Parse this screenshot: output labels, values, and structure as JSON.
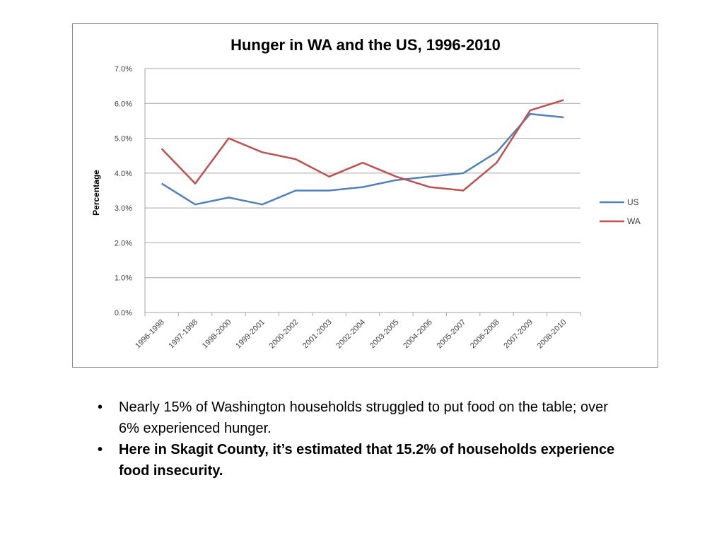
{
  "chart_data": {
    "type": "line",
    "title": "Hunger in WA and the US, 1996-2010",
    "xlabel": "",
    "ylabel": "Percentage",
    "ylim": [
      0,
      0.07
    ],
    "yticks": [
      "0.0%",
      "1.0%",
      "2.0%",
      "3.0%",
      "4.0%",
      "5.0%",
      "6.0%",
      "7.0%"
    ],
    "grid": true,
    "legend": "right",
    "categories": [
      "1996-1998",
      "1997-1998",
      "1998-2000",
      "1999-2001",
      "2000-2002",
      "2001-2003",
      "2002-2004",
      "2003-2005",
      "2004-2006",
      "2005-2007",
      "2006-2008",
      "2007-2009",
      "2008-2010"
    ],
    "series": [
      {
        "name": "US",
        "color": "#4F81BD",
        "values": [
          0.037,
          0.031,
          0.033,
          0.031,
          0.035,
          0.035,
          0.036,
          0.038,
          0.039,
          0.04,
          0.046,
          0.057,
          0.056
        ]
      },
      {
        "name": "WA",
        "color": "#C0504D",
        "values": [
          0.047,
          0.037,
          0.05,
          0.046,
          0.044,
          0.039,
          0.043,
          0.039,
          0.036,
          0.035,
          0.043,
          0.058,
          0.061
        ]
      }
    ]
  },
  "bullets": [
    {
      "text": "Nearly 15% of Washington households struggled to put food on the table; over 6% experienced hunger.",
      "bold": false
    },
    {
      "text": "Here in Skagit County, it’s estimated that 15.2% of households experience food insecurity.",
      "bold": true
    }
  ],
  "bullet_symbol": "•"
}
